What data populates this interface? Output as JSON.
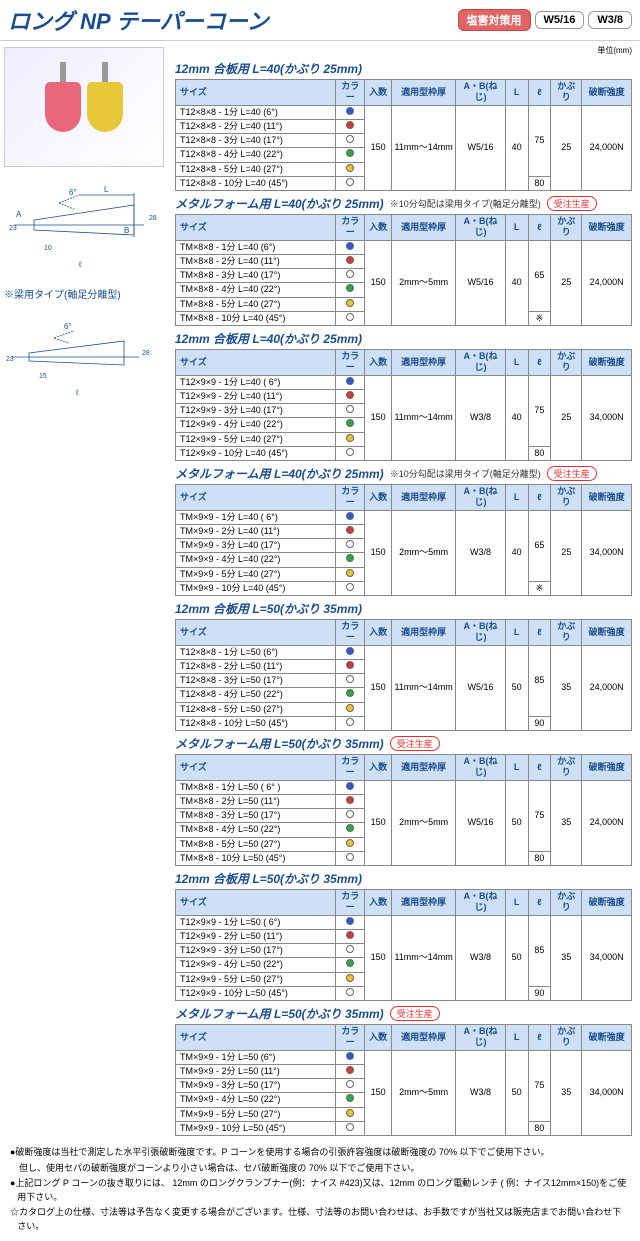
{
  "title": "ロング NP テーパーコーン",
  "badges": {
    "salt": "塩害対策用",
    "w516": "W5/16",
    "w38": "W3/8"
  },
  "unit_label": "単位(mm)",
  "made_to_order": "受注生産",
  "note_10bu": "※10分勾配は梁用タイプ(軸足分離型)",
  "diagram_label": "※梁用タイプ(軸足分離型)",
  "colors": {
    "blue": "#2a5bd7",
    "red": "#d13a3a",
    "white": "#ffffff",
    "green": "#2aa84a",
    "yellow": "#e8c62a"
  },
  "cone_colors": {
    "pink": "#e8677a",
    "yellow": "#e6c838"
  },
  "headers": {
    "size": "サイズ",
    "color": "カラー",
    "qty": "入数",
    "form": "適用型枠厚",
    "ab": "A・B(ねじ)",
    "L": "L",
    "ell": "ℓ",
    "cov": "かぶり",
    "str": "破断強度"
  },
  "tables": [
    {
      "title": "12mm 合板用  L=40(かぶり 25mm)",
      "order": false,
      "note10": false,
      "rows": [
        [
          "T12×8×8 - 1分  L=40  (6°)",
          "blue"
        ],
        [
          "T12×8×8 - 2分  L=40 (11°)",
          "red"
        ],
        [
          "T12×8×8 - 3分  L=40 (17°)",
          "white"
        ],
        [
          "T12×8×8 - 4分  L=40 (22°)",
          "green"
        ],
        [
          "T12×8×8 - 5分  L=40 (27°)",
          "yellow"
        ],
        [
          "T12×8×8 - 10分 L=40 (45°)",
          "white"
        ]
      ],
      "qty": "150",
      "form": "11mm～14mm",
      "ab": "W5/16",
      "L": "40",
      "ell": "75",
      "ellLast": "80",
      "cov": "25",
      "str": "24,000N"
    },
    {
      "title": "メタルフォーム用  L=40(かぶり 25mm)",
      "order": true,
      "note10": true,
      "rows": [
        [
          "TM×8×8 - 1分   L=40  (6°)",
          "blue"
        ],
        [
          "TM×8×8 - 2分   L=40 (11°)",
          "red"
        ],
        [
          "TM×8×8 - 3分   L=40 (17°)",
          "white"
        ],
        [
          "TM×8×8 - 4分   L=40 (22°)",
          "green"
        ],
        [
          "TM×8×8 - 5分   L=40 (27°)",
          "yellow"
        ],
        [
          "TM×8×8 - 10分  L=40 (45°)",
          "white"
        ]
      ],
      "qty": "150",
      "form": "2mm～5mm",
      "ab": "W5/16",
      "L": "40",
      "ell": "65",
      "ellLast": "※",
      "cov": "25",
      "str": "24,000N"
    },
    {
      "title": "12mm 合板用  L=40(かぶり 25mm)",
      "order": false,
      "note10": false,
      "rows": [
        [
          "T12×9×9 - 1分  L=40 ( 6°)",
          "blue"
        ],
        [
          "T12×9×9 - 2分  L=40 (11°)",
          "red"
        ],
        [
          "T12×9×9 - 3分  L=40 (17°)",
          "white"
        ],
        [
          "T12×9×9 - 4分  L=40 (22°)",
          "green"
        ],
        [
          "T12×9×9 - 5分  L=40 (27°)",
          "yellow"
        ],
        [
          "T12×9×9 - 10分 L=40 (45°)",
          "white"
        ]
      ],
      "qty": "150",
      "form": "11mm～14mm",
      "ab": "W3/8",
      "L": "40",
      "ell": "75",
      "ellLast": "80",
      "cov": "25",
      "str": "34,000N"
    },
    {
      "title": "メタルフォーム用  L=40(かぶり 25mm)",
      "order": true,
      "note10": true,
      "rows": [
        [
          "TM×9×9 - 1分  L=40 ( 6°)",
          "blue"
        ],
        [
          "TM×9×9 - 2分  L=40 (11°)",
          "red"
        ],
        [
          "TM×9×9 - 3分  L=40 (17°)",
          "white"
        ],
        [
          "TM×9×9 - 4分  L=40 (22°)",
          "green"
        ],
        [
          "TM×9×9 - 5分  L=40 (27°)",
          "yellow"
        ],
        [
          "TM×9×9 - 10分 L=40 (45°)",
          "white"
        ]
      ],
      "qty": "150",
      "form": "2mm～5mm",
      "ab": "W3/8",
      "L": "40",
      "ell": "65",
      "ellLast": "※",
      "cov": "25",
      "str": "34,000N"
    },
    {
      "title": "12mm 合板用  L=50(かぶり 35mm)",
      "order": false,
      "note10": false,
      "rows": [
        [
          "T12×8×8 - 1分  L=50  (6°)",
          "blue"
        ],
        [
          "T12×8×8 - 2分  L=50 (11°)",
          "red"
        ],
        [
          "T12×8×8 - 3分  L=50 (17°)",
          "white"
        ],
        [
          "T12×8×8 - 4分  L=50 (22°)",
          "green"
        ],
        [
          "T12×8×8 - 5分  L=50 (27°)",
          "yellow"
        ],
        [
          "T12×8×8 - 10分 L=50 (45°)",
          "white"
        ]
      ],
      "qty": "150",
      "form": "11mm～14mm",
      "ab": "W5/16",
      "L": "50",
      "ell": "85",
      "ellLast": "90",
      "cov": "35",
      "str": "24,000N"
    },
    {
      "title": "メタルフォーム用  L=50(かぶり 35mm)",
      "order": true,
      "note10": false,
      "rows": [
        [
          "TM×8×8 - 1分  L=50 ( 6° )",
          "blue"
        ],
        [
          "TM×8×8 - 2分  L=50 (11°)",
          "red"
        ],
        [
          "TM×8×8 - 3分  L=50 (17°)",
          "white"
        ],
        [
          "TM×8×8 - 4分  L=50 (22°)",
          "green"
        ],
        [
          "TM×8×8 - 5分  L=50 (27°)",
          "yellow"
        ],
        [
          "TM×8×8 - 10分 L=50 (45°)",
          "white"
        ]
      ],
      "qty": "150",
      "form": "2mm～5mm",
      "ab": "W5/16",
      "L": "50",
      "ell": "75",
      "ellLast": "80",
      "cov": "35",
      "str": "24,000N"
    },
    {
      "title": "12mm 合板用  L=50(かぶり 35mm)",
      "order": false,
      "note10": false,
      "rows": [
        [
          "T12×9×9 - 1分  L=50 ( 6°)",
          "blue"
        ],
        [
          "T12×9×9 - 2分  L=50 (11°)",
          "red"
        ],
        [
          "T12×9×9 - 3分  L=50 (17°)",
          "white"
        ],
        [
          "T12×9×9 - 4分  L=50 (22°)",
          "green"
        ],
        [
          "T12×9×9 - 5分  L=50 (27°)",
          "yellow"
        ],
        [
          "T12×9×9 - 10分 L=50 (45°)",
          "white"
        ]
      ],
      "qty": "150",
      "form": "11mm～14mm",
      "ab": "W3/8",
      "L": "50",
      "ell": "85",
      "ellLast": "90",
      "cov": "35",
      "str": "34,000N"
    },
    {
      "title": "メタルフォーム用  L=50(かぶり 35mm)",
      "order": true,
      "note10": false,
      "rows": [
        [
          "TM×9×9 - 1分  L=50  (6°)",
          "blue"
        ],
        [
          "TM×9×9 - 2分  L=50 (11°)",
          "red"
        ],
        [
          "TM×9×9 - 3分  L=50 (17°)",
          "white"
        ],
        [
          "TM×9×9 - 4分  L=50 (22°)",
          "green"
        ],
        [
          "TM×9×9 - 5分  L=50 (27°)",
          "yellow"
        ],
        [
          "TM×9×9 - 10分 L=50 (45°)",
          "white"
        ]
      ],
      "qty": "150",
      "form": "2mm～5mm",
      "ab": "W3/8",
      "L": "50",
      "ell": "75",
      "ellLast": "80",
      "cov": "35",
      "str": "34,000N"
    }
  ],
  "notes": [
    "●破断強度は当社で測定した水平引張破断強度です。P コーンを使用する場合の引張許容強度は破断強度の 70% 以下でご使用下さい。",
    "　但し、使用セパの破断強度がコーンより小さい場合は、セパ破断強度の 70% 以下でご使用下さい。",
    "●上記ロング P コーンの抜き取りには、 12mm のロングクランプナー(例：ナイス #423)又は、12mm のロング電動レンチ ( 例：ナイス12mm×150)をご使用下さい。",
    "☆カタログ上の仕様、寸法等は予告なく変更する場合がございます。仕様、寸法等のお問い合わせは、お手数ですが当社又は販売店までお問い合わせ下さい。"
  ],
  "diagram_text": {
    "L": "L",
    "A": "A",
    "B": "B",
    "six": "6°",
    "t23": "23",
    "t28": "28",
    "ten": "10",
    "fifteen": "15",
    "ell": "ℓ"
  }
}
